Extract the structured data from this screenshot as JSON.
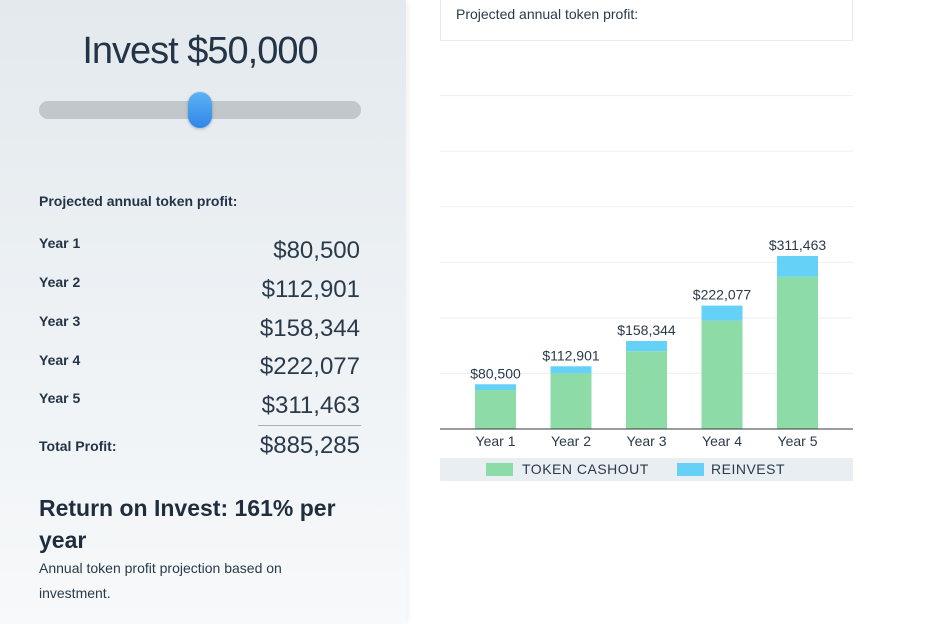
{
  "calculator": {
    "invest_title": "Invest $50,000",
    "slider": {
      "position_percent": 50
    },
    "projection_label": "Projected annual token profit:",
    "rows": [
      {
        "label": "Year 1",
        "value": "$80,500"
      },
      {
        "label": "Year 2",
        "value": "$112,901"
      },
      {
        "label": "Year 3",
        "value": "$158,344"
      },
      {
        "label": "Year 4",
        "value": "$222,077"
      },
      {
        "label": "Year 5",
        "value": "$311,463"
      }
    ],
    "total_label": "Total Profit:",
    "total_value": "$885,285",
    "roi_title": "Return on Invest: 161% per year",
    "roi_note": "Annual token profit projection based on investment."
  },
  "chart_header": "Projected annual token profit:",
  "legend": {
    "cashout": "TOKEN CASHOUT",
    "reinvest": "REINVEST"
  },
  "colors": {
    "cashout": "#8ddba6",
    "reinvest": "#66d1f7",
    "slider_thumb": "#3b93ee"
  },
  "chart_data": {
    "type": "bar",
    "stacked": true,
    "categories": [
      "Year 1",
      "Year 2",
      "Year 3",
      "Year 4",
      "Year 5"
    ],
    "series": [
      {
        "name": "TOKEN CASHOUT",
        "values": [
          70000,
          100000,
          140000,
          195000,
          274000
        ]
      },
      {
        "name": "REINVEST",
        "values": [
          10500,
          12901,
          18344,
          27077,
          37463
        ]
      }
    ],
    "totals": [
      80500,
      112901,
      158344,
      222077,
      311463
    ],
    "total_labels": [
      "$80,500",
      "$112,901",
      "$158,344",
      "$222,077",
      "$311,463"
    ],
    "ylim": [
      0,
      700000
    ],
    "grid": true,
    "legend_position": "bottom"
  }
}
